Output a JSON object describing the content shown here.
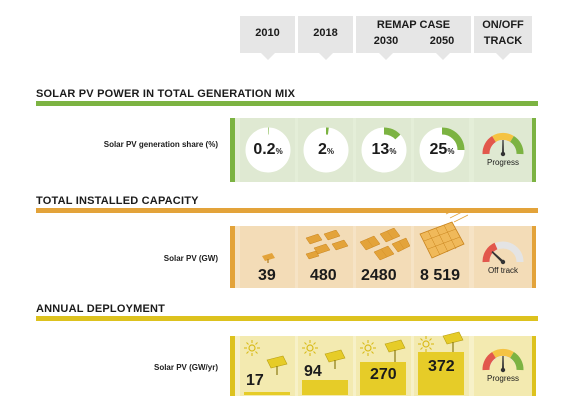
{
  "headers": {
    "y2010": "2010",
    "y2018": "2018",
    "remap_case": "REMAP CASE",
    "y2030": "2030",
    "y2050": "2050",
    "on_off": "ON/OFF",
    "track": "TRACK"
  },
  "sections": [
    {
      "title": "SOLAR PV POWER IN TOTAL GENERATION MIX",
      "row_label": "Solar PV generation share (%)",
      "color": "#7cb342",
      "panel_bg": "#e4eed8",
      "cell_bg": "#dfe9d2",
      "values": [
        "0.2",
        "2",
        "13",
        "25"
      ],
      "share_fractions": [
        0.002,
        0.02,
        0.13,
        0.25
      ],
      "unit": "%",
      "status": "Progress",
      "status_level": "progress"
    },
    {
      "title": "TOTAL INSTALLED CAPACITY",
      "row_label": "Solar PV (GW)",
      "color": "#e3a33a",
      "panel_bg": "#f6e3c5",
      "cell_bg": "#f3dcb7",
      "values": [
        "39",
        "480",
        "2480",
        "8 519"
      ],
      "status": "Off track",
      "status_level": "off-track"
    },
    {
      "title": "ANNUAL DEPLOYMENT",
      "row_label": "Solar PV (GW/yr)",
      "color": "#ddc21e",
      "panel_bg": "#f7f1c8",
      "cell_bg": "#f3eab0",
      "values": [
        "17",
        "94",
        "270",
        "372"
      ],
      "status": "Progress",
      "status_level": "progress"
    }
  ],
  "icons": {
    "solar_panel": "solar-panel-icon",
    "sun": "sun-icon",
    "gauge": "gauge-icon"
  }
}
